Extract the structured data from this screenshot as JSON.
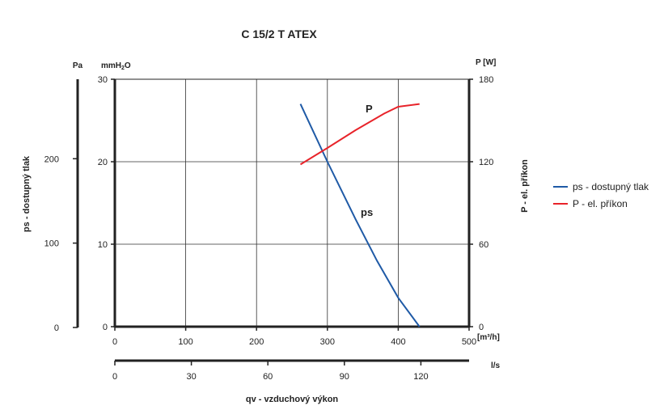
{
  "chart_data": {
    "type": "line",
    "title": "C 15/2 T ATEX",
    "x_axis_primary": {
      "unit": "[m³/h]",
      "label": "qv - vzduchový výkon",
      "ticks": [
        "0",
        "100",
        "200",
        "300",
        "400",
        "500"
      ],
      "range": [
        0,
        500
      ]
    },
    "x_axis_secondary": {
      "unit": "l/s",
      "ticks": [
        "0",
        "30",
        "60",
        "90",
        "120"
      ],
      "range": [
        0,
        138.9
      ]
    },
    "y_axis_left_pa": {
      "unit": "Pa",
      "label": "ps - dostupný tlak",
      "ticks": [
        "0",
        "100",
        "200"
      ],
      "range": [
        0,
        294.2
      ]
    },
    "y_axis_left_mmh2o": {
      "unit_main": "mmH",
      "unit_sub": "2",
      "unit_end": "O",
      "ticks": [
        "0",
        "10",
        "20",
        "30"
      ],
      "range": [
        0,
        30
      ]
    },
    "y_axis_right": {
      "unit": "P [W]",
      "label": "P - el. příkon",
      "ticks": [
        "0",
        "60",
        "120",
        "180"
      ],
      "range": [
        0,
        180
      ]
    },
    "grid": true,
    "legend_position": "right",
    "series": [
      {
        "name": "ps - dostupný tlak",
        "axis": "mmH2O",
        "color": "#1f5aa6",
        "curve_label": "ps",
        "points": [
          [
            262,
            27
          ],
          [
            300,
            20
          ],
          [
            340,
            13
          ],
          [
            370,
            8
          ],
          [
            400,
            3.5
          ],
          [
            430,
            0
          ]
        ]
      },
      {
        "name": "P - el. příkon",
        "axis": "W",
        "color": "#e8232a",
        "curve_label": "P",
        "points": [
          [
            262,
            118
          ],
          [
            300,
            130
          ],
          [
            340,
            143
          ],
          [
            380,
            155
          ],
          [
            400,
            160
          ],
          [
            430,
            162
          ]
        ]
      }
    ]
  }
}
